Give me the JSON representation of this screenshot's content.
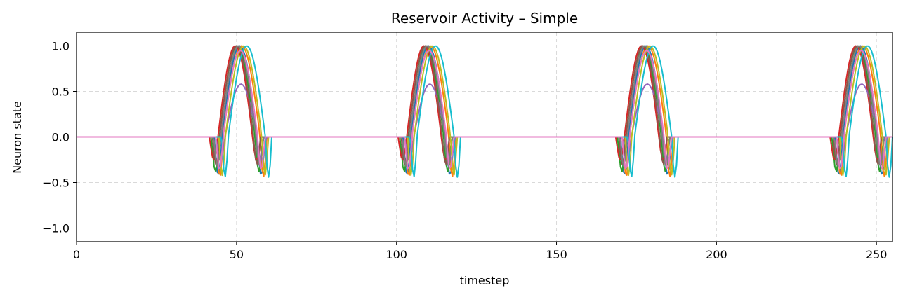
{
  "chart_data": {
    "type": "line",
    "title": "Reservoir Activity – Simple",
    "xlabel": "timestep",
    "ylabel": "Neuron state",
    "xlim": [
      0,
      255
    ],
    "ylim": [
      -1.15,
      1.15
    ],
    "xticks": [
      0,
      50,
      100,
      150,
      200,
      250
    ],
    "yticks": [
      -1.0,
      -0.5,
      0.0,
      0.5,
      1.0
    ],
    "ytick_labels": [
      "−1.0",
      "−0.5",
      "0.0",
      "0.5",
      "1.0"
    ],
    "grid": true,
    "legend": "none",
    "pulse_centers": [
      51,
      110,
      178,
      245
    ],
    "series": [
      {
        "color": "#1f77b4",
        "offset": 0.0,
        "halfwidth": 5.5,
        "peak": 1.0,
        "dip_depth": -0.42,
        "dip_width": 1.2
      },
      {
        "color": "#ff7f0e",
        "offset": 0.6,
        "halfwidth": 5.8,
        "peak": 1.0,
        "dip_depth": -0.44,
        "dip_width": 1.0
      },
      {
        "color": "#2ca02c",
        "offset": -0.8,
        "halfwidth": 5.6,
        "peak": 1.0,
        "dip_depth": -0.38,
        "dip_width": 1.2
      },
      {
        "color": "#d62728",
        "offset": -1.4,
        "halfwidth": 5.4,
        "peak": 1.0,
        "dip_depth": -0.25,
        "dip_width": 1.3
      },
      {
        "color": "#9467bd",
        "offset": 0.4,
        "halfwidth": 5.0,
        "peak": 0.58,
        "dip_depth": -0.26,
        "dip_width": 1.4
      },
      {
        "color": "#8c564b",
        "offset": -1.0,
        "halfwidth": 5.3,
        "peak": 1.0,
        "dip_depth": -0.3,
        "dip_width": 1.1
      },
      {
        "color": "#7f7f7f",
        "offset": -0.4,
        "halfwidth": 5.5,
        "peak": 1.0,
        "dip_depth": -0.32,
        "dip_width": 1.1
      },
      {
        "color": "#bcbd22",
        "offset": 1.2,
        "halfwidth": 5.7,
        "peak": 1.0,
        "dip_depth": -0.42,
        "dip_width": 1.0
      },
      {
        "color": "#17becf",
        "offset": 2.2,
        "halfwidth": 5.8,
        "peak": 1.0,
        "dip_depth": -0.44,
        "dip_width": 1.0
      },
      {
        "color": "#e377c2",
        "offset": 0.2,
        "halfwidth": 5.4,
        "peak": 0.95,
        "dip_depth": -0.36,
        "dip_width": 1.1
      }
    ]
  }
}
